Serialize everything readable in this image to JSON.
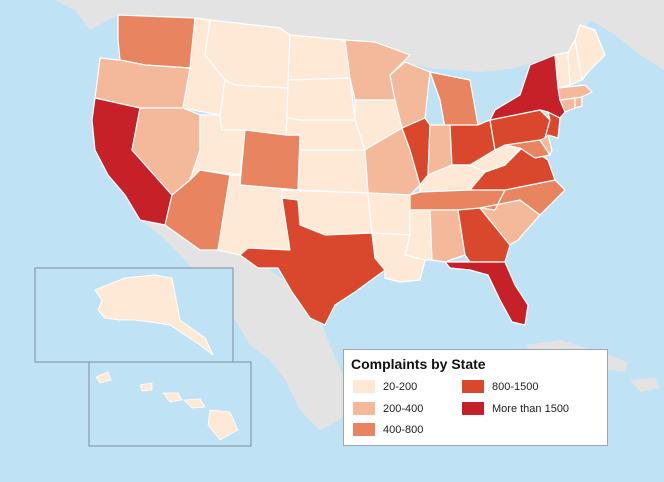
{
  "legend": {
    "title": "Complaints by State",
    "items": [
      {
        "label": "20-200",
        "color": "#fde9d6"
      },
      {
        "label": "200-400",
        "color": "#f4b99a"
      },
      {
        "label": "400-800",
        "color": "#e8845f"
      },
      {
        "label": "800-1500",
        "color": "#d9482c"
      },
      {
        "label": "More than 1500",
        "color": "#c62128"
      }
    ]
  },
  "colors": {
    "water": "#bfe2f5",
    "foreign_land": "#e3e3e3",
    "state_border": "#ffffff",
    "inset_border": "#7d8f9e"
  },
  "states": [
    {
      "name": "washington",
      "category": 2
    },
    {
      "name": "oregon",
      "category": 1
    },
    {
      "name": "california",
      "category": 4
    },
    {
      "name": "idaho",
      "category": 0
    },
    {
      "name": "nevada",
      "category": 1
    },
    {
      "name": "arizona",
      "category": 2
    },
    {
      "name": "utah",
      "category": 0
    },
    {
      "name": "montana",
      "category": 0
    },
    {
      "name": "wyoming",
      "category": 0
    },
    {
      "name": "colorado",
      "category": 2
    },
    {
      "name": "new-mexico",
      "category": 0
    },
    {
      "name": "north-dakota",
      "category": 0
    },
    {
      "name": "south-dakota",
      "category": 0
    },
    {
      "name": "nebraska",
      "category": 0
    },
    {
      "name": "kansas",
      "category": 0
    },
    {
      "name": "oklahoma",
      "category": 0
    },
    {
      "name": "texas",
      "category": 3
    },
    {
      "name": "minnesota",
      "category": 1
    },
    {
      "name": "iowa",
      "category": 0
    },
    {
      "name": "missouri",
      "category": 1
    },
    {
      "name": "arkansas",
      "category": 0
    },
    {
      "name": "louisiana",
      "category": 0
    },
    {
      "name": "wisconsin",
      "category": 1
    },
    {
      "name": "illinois",
      "category": 3
    },
    {
      "name": "michigan",
      "category": 2
    },
    {
      "name": "indiana",
      "category": 1
    },
    {
      "name": "ohio",
      "category": 3
    },
    {
      "name": "kentucky",
      "category": 0
    },
    {
      "name": "tennessee",
      "category": 2
    },
    {
      "name": "mississippi",
      "category": 0
    },
    {
      "name": "alabama",
      "category": 1
    },
    {
      "name": "georgia",
      "category": 3
    },
    {
      "name": "florida",
      "category": 4
    },
    {
      "name": "south-carolina",
      "category": 1
    },
    {
      "name": "north-carolina",
      "category": 2
    },
    {
      "name": "virginia",
      "category": 3
    },
    {
      "name": "west-virginia",
      "category": 0
    },
    {
      "name": "maryland",
      "category": 2
    },
    {
      "name": "delaware",
      "category": 1
    },
    {
      "name": "pennsylvania",
      "category": 3
    },
    {
      "name": "new-jersey",
      "category": 3
    },
    {
      "name": "new-york",
      "category": 4
    },
    {
      "name": "connecticut",
      "category": 1
    },
    {
      "name": "rhode-island",
      "category": 1
    },
    {
      "name": "massachusetts",
      "category": 1
    },
    {
      "name": "vermont",
      "category": 0
    },
    {
      "name": "new-hampshire",
      "category": 0
    },
    {
      "name": "maine",
      "category": 0
    },
    {
      "name": "alaska",
      "category": 0
    },
    {
      "name": "hawaii",
      "category": 0
    }
  ]
}
